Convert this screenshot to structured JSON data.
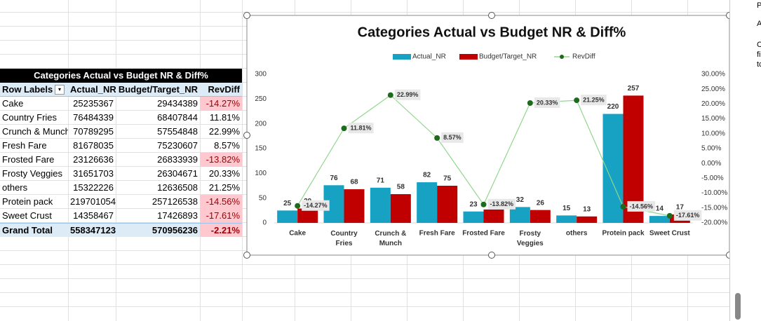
{
  "table": {
    "title": "Categories Actual vs Budget NR & Diff%",
    "headers": [
      "Row Labels",
      "Actual_NR",
      "Budget/Target_NR",
      "RevDiff"
    ],
    "rows": [
      [
        "Cake",
        25235367,
        29434389,
        "-14.27%"
      ],
      [
        "Country Fries",
        76484339,
        68407844,
        "11.81%"
      ],
      [
        "Crunch & Munch",
        70789295,
        57554848,
        "22.99%"
      ],
      [
        "Fresh Fare",
        81678035,
        75230607,
        "8.57%"
      ],
      [
        "Frosted Fare",
        23126636,
        26833939,
        "-13.82%"
      ],
      [
        "Frosty Veggies",
        31651703,
        26304671,
        "20.33%"
      ],
      [
        "others",
        15322226,
        12636508,
        "21.25%"
      ],
      [
        "Protein pack",
        219701054,
        257126538,
        "-14.56%"
      ],
      [
        "Sweet Crust",
        14358467,
        17426893,
        "-17.61%"
      ]
    ],
    "total": [
      "Grand Total",
      558347123,
      570956236,
      "-2.21%"
    ]
  },
  "side_panel": {
    "lines": [
      "P",
      "A",
      "C",
      "fi",
      "tc"
    ]
  },
  "chart_data": {
    "type": "bar",
    "title": "Categories Actual vs Budget NR & Diff%",
    "categories": [
      "Cake",
      "Country Fries",
      "Crunch & Munch",
      "Fresh Fare",
      "Frosted Fare",
      "Frosty Veggies",
      "others",
      "Protein pack",
      "Sweet Crust"
    ],
    "series": [
      {
        "name": "Actual_NR",
        "color": "#17a2c4",
        "values": [
          25,
          76,
          71,
          82,
          23,
          32,
          15,
          220,
          14
        ]
      },
      {
        "name": "Budget/Target_NR",
        "color": "#c00000",
        "values": [
          29,
          68,
          58,
          75,
          27,
          26,
          13,
          257,
          17
        ]
      },
      {
        "name": "RevDiff",
        "type": "line",
        "axis": "y2",
        "color": "#92d68f",
        "marker_color": "#1e6b1e",
        "values": [
          -14.27,
          11.81,
          22.99,
          8.57,
          -13.82,
          20.33,
          21.25,
          -14.56,
          -17.61
        ],
        "value_labels": [
          "-14.27%",
          "11.81%",
          "22.99%",
          "8.57%",
          "-13.82%",
          "20.33%",
          "21.25%",
          "-14.56%",
          "-17.61%"
        ]
      }
    ],
    "ylim": [
      0,
      300
    ],
    "yticks": [
      0,
      50,
      100,
      150,
      200,
      250,
      300
    ],
    "y2lim": [
      -20,
      30
    ],
    "y2ticks": [
      {
        "value": -20,
        "label": "-20.00%"
      },
      {
        "value": -15,
        "label": "-15.00%"
      },
      {
        "value": -10,
        "label": "-10.00%"
      },
      {
        "value": -5,
        "label": "-5.00%"
      },
      {
        "value": 0,
        "label": "0.00%"
      },
      {
        "value": 5,
        "label": "5.00%"
      },
      {
        "value": 10,
        "label": "10.00%"
      },
      {
        "value": 15,
        "label": "15.00%"
      },
      {
        "value": 20,
        "label": "20.00%"
      },
      {
        "value": 25,
        "label": "25.00%"
      },
      {
        "value": 30,
        "label": "30.00%"
      }
    ],
    "legend": "top",
    "grid": false
  }
}
